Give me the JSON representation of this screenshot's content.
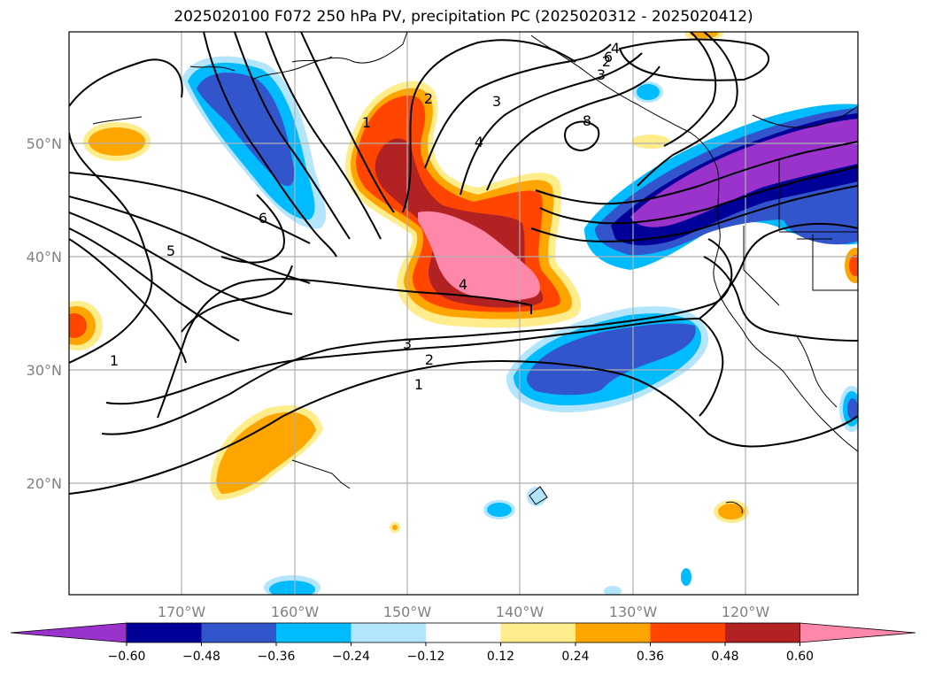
{
  "title": "2025020100 F072 250 hPa PV, precipitation PC (2025020312 - 2025020412)",
  "axes": {
    "lat_labels": [
      "50°N",
      "40°N",
      "30°N",
      "20°N"
    ],
    "lon_labels": [
      "170°W",
      "160°W",
      "150°W",
      "140°W",
      "130°W",
      "120°W"
    ]
  },
  "colorbar": {
    "colors": [
      "#9933cc",
      "#000099",
      "#3355cc",
      "#00bbff",
      "#b3e5fc",
      "#ffffff",
      "#ffec8b",
      "#ffa500",
      "#ff4500",
      "#b22222",
      "#ff88aa"
    ],
    "tick_labels": [
      "−0.60",
      "−0.48",
      "−0.36",
      "−0.24",
      "−0.12",
      "0.12",
      "0.24",
      "0.36",
      "0.48",
      "0.60"
    ],
    "extend": "both"
  },
  "pv_contour_labels": [
    "1",
    "2",
    "3",
    "4",
    "5",
    "6",
    "8",
    "1",
    "2",
    "3",
    "4",
    "1",
    "2",
    "3",
    "4",
    "6"
  ]
}
